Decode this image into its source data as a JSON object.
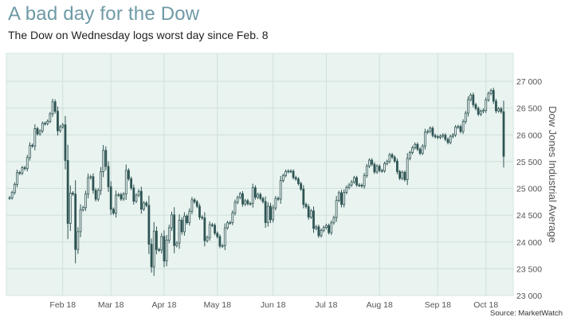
{
  "header": {
    "title": "A bad day for the Dow",
    "subtitle": "The Dow on Wednesday logs worst day since Feb. 8"
  },
  "footer": {
    "source": "Source: MarketWatch"
  },
  "colors": {
    "plot_background": "#e9f3ef",
    "grid": "#cfe0da",
    "candle": "#2e5554",
    "title": "#6e9aa6",
    "axis_text": "#555555"
  },
  "chart_data": {
    "type": "candlestick",
    "title": "A bad day for the Dow",
    "subtitle": "The Dow on Wednesday logs worst day since Feb. 8",
    "ylabel": "Dow Jones Industrial Average",
    "xlabel": "",
    "y_axis_side": "right",
    "ylim": [
      23000,
      27000
    ],
    "y_ticks": [
      23000,
      23500,
      24000,
      24500,
      25000,
      25500,
      26000,
      26500,
      27000
    ],
    "y_tick_labels": [
      "23 000",
      "23 500",
      "24 000",
      "24 500",
      "25 000",
      "25 500",
      "26 000",
      "26 500",
      "27 000"
    ],
    "x_ticks": [
      "Feb 18",
      "Mar 18",
      "Apr 18",
      "May 18",
      "Jun 18",
      "Jul 18",
      "Aug 18",
      "Sep 18",
      "Oct 18"
    ],
    "grid": true,
    "series": [
      {
        "interval": "daily",
        "values": [
          {
            "d": "Jan 02",
            "c": 24824
          },
          {
            "d": "Jan 03",
            "c": 24922
          },
          {
            "d": "Jan 04",
            "c": 25075
          },
          {
            "d": "Jan 05",
            "c": 25295
          },
          {
            "d": "Jan 08",
            "c": 25283
          },
          {
            "d": "Jan 09",
            "c": 25386
          },
          {
            "d": "Jan 10",
            "c": 25369
          },
          {
            "d": "Jan 11",
            "c": 25574
          },
          {
            "d": "Jan 12",
            "c": 25803
          },
          {
            "d": "Jan 16",
            "c": 25792
          },
          {
            "d": "Jan 17",
            "c": 26116
          },
          {
            "d": "Jan 18",
            "c": 26017
          },
          {
            "d": "Jan 19",
            "c": 26071
          },
          {
            "d": "Jan 22",
            "c": 26214
          },
          {
            "d": "Jan 23",
            "c": 26210
          },
          {
            "d": "Jan 24",
            "c": 26252
          },
          {
            "d": "Jan 25",
            "c": 26392
          },
          {
            "d": "Jan 26",
            "c": 26616
          },
          {
            "d": "Jan 29",
            "c": 26439
          },
          {
            "d": "Jan 30",
            "c": 26076
          },
          {
            "d": "Jan 31",
            "c": 26149
          },
          {
            "d": "Feb 01",
            "c": 26186
          },
          {
            "d": "Feb 02",
            "c": 25521
          },
          {
            "d": "Feb 05",
            "c": 24346
          },
          {
            "d": "Feb 06",
            "c": 24913
          },
          {
            "d": "Feb 07",
            "c": 24893
          },
          {
            "d": "Feb 08",
            "c": 23860
          },
          {
            "d": "Feb 09",
            "c": 24191
          },
          {
            "d": "Feb 12",
            "c": 24601
          },
          {
            "d": "Feb 13",
            "c": 24640
          },
          {
            "d": "Feb 14",
            "c": 24893
          },
          {
            "d": "Feb 15",
            "c": 25200
          },
          {
            "d": "Feb 16",
            "c": 25219
          },
          {
            "d": "Feb 20",
            "c": 24964
          },
          {
            "d": "Feb 21",
            "c": 24798
          },
          {
            "d": "Feb 22",
            "c": 24963
          },
          {
            "d": "Feb 23",
            "c": 25310
          },
          {
            "d": "Feb 26",
            "c": 25709
          },
          {
            "d": "Feb 27",
            "c": 25410
          },
          {
            "d": "Feb 28",
            "c": 25029
          },
          {
            "d": "Mar 01",
            "c": 24609
          },
          {
            "d": "Mar 02",
            "c": 24538
          },
          {
            "d": "Mar 05",
            "c": 24874
          },
          {
            "d": "Mar 06",
            "c": 24884
          },
          {
            "d": "Mar 07",
            "c": 24802
          },
          {
            "d": "Mar 08",
            "c": 24895
          },
          {
            "d": "Mar 09",
            "c": 25336
          },
          {
            "d": "Mar 12",
            "c": 25179
          },
          {
            "d": "Mar 13",
            "c": 25008
          },
          {
            "d": "Mar 14",
            "c": 24759
          },
          {
            "d": "Mar 15",
            "c": 24874
          },
          {
            "d": "Mar 16",
            "c": 24947
          },
          {
            "d": "Mar 19",
            "c": 24611
          },
          {
            "d": "Mar 20",
            "c": 24728
          },
          {
            "d": "Mar 21",
            "c": 24683
          },
          {
            "d": "Mar 22",
            "c": 23958
          },
          {
            "d": "Mar 23",
            "c": 23533
          },
          {
            "d": "Mar 26",
            "c": 24202
          },
          {
            "d": "Mar 27",
            "c": 23857
          },
          {
            "d": "Mar 28",
            "c": 23849
          },
          {
            "d": "Mar 29",
            "c": 24103
          },
          {
            "d": "Apr 02",
            "c": 23644
          },
          {
            "d": "Apr 03",
            "c": 24033
          },
          {
            "d": "Apr 04",
            "c": 24265
          },
          {
            "d": "Apr 05",
            "c": 24505
          },
          {
            "d": "Apr 06",
            "c": 23933
          },
          {
            "d": "Apr 09",
            "c": 23979
          },
          {
            "d": "Apr 10",
            "c": 24408
          },
          {
            "d": "Apr 11",
            "c": 24190
          },
          {
            "d": "Apr 12",
            "c": 24483
          },
          {
            "d": "Apr 13",
            "c": 24360
          },
          {
            "d": "Apr 16",
            "c": 24573
          },
          {
            "d": "Apr 17",
            "c": 24786
          },
          {
            "d": "Apr 18",
            "c": 24748
          },
          {
            "d": "Apr 19",
            "c": 24665
          },
          {
            "d": "Apr 20",
            "c": 24463
          },
          {
            "d": "Apr 23",
            "c": 24448
          },
          {
            "d": "Apr 24",
            "c": 24024
          },
          {
            "d": "Apr 25",
            "c": 24084
          },
          {
            "d": "Apr 26",
            "c": 24322
          },
          {
            "d": "Apr 27",
            "c": 24311
          },
          {
            "d": "Apr 30",
            "c": 24163
          },
          {
            "d": "May 01",
            "c": 24100
          },
          {
            "d": "May 02",
            "c": 23925
          },
          {
            "d": "May 03",
            "c": 23930
          },
          {
            "d": "May 04",
            "c": 24263
          },
          {
            "d": "May 07",
            "c": 24358
          },
          {
            "d": "May 08",
            "c": 24361
          },
          {
            "d": "May 09",
            "c": 24543
          },
          {
            "d": "May 10",
            "c": 24740
          },
          {
            "d": "May 11",
            "c": 24831
          },
          {
            "d": "May 14",
            "c": 24900
          },
          {
            "d": "May 15",
            "c": 24706
          },
          {
            "d": "May 16",
            "c": 24769
          },
          {
            "d": "May 17",
            "c": 24714
          },
          {
            "d": "May 18",
            "c": 24715
          },
          {
            "d": "May 21",
            "c": 25013
          },
          {
            "d": "May 22",
            "c": 24834
          },
          {
            "d": "May 23",
            "c": 24887
          },
          {
            "d": "May 24",
            "c": 24811
          },
          {
            "d": "May 25",
            "c": 24753
          },
          {
            "d": "May 29",
            "c": 24362
          },
          {
            "d": "May 30",
            "c": 24667
          },
          {
            "d": "May 31",
            "c": 24416
          },
          {
            "d": "Jun 01",
            "c": 24635
          },
          {
            "d": "Jun 04",
            "c": 24813
          },
          {
            "d": "Jun 05",
            "c": 24799
          },
          {
            "d": "Jun 06",
            "c": 25146
          },
          {
            "d": "Jun 07",
            "c": 25241
          },
          {
            "d": "Jun 08",
            "c": 25317
          },
          {
            "d": "Jun 11",
            "c": 25322
          },
          {
            "d": "Jun 12",
            "c": 25320
          },
          {
            "d": "Jun 13",
            "c": 25201
          },
          {
            "d": "Jun 14",
            "c": 25175
          },
          {
            "d": "Jun 15",
            "c": 25090
          },
          {
            "d": "Jun 18",
            "c": 24987
          },
          {
            "d": "Jun 19",
            "c": 24700
          },
          {
            "d": "Jun 20",
            "c": 24657
          },
          {
            "d": "Jun 21",
            "c": 24462
          },
          {
            "d": "Jun 22",
            "c": 24580
          },
          {
            "d": "Jun 25",
            "c": 24252
          },
          {
            "d": "Jun 26",
            "c": 24283
          },
          {
            "d": "Jun 27",
            "c": 24117
          },
          {
            "d": "Jun 28",
            "c": 24216
          },
          {
            "d": "Jun 29",
            "c": 24271
          },
          {
            "d": "Jul 02",
            "c": 24307
          },
          {
            "d": "Jul 03",
            "c": 24174
          },
          {
            "d": "Jul 05",
            "c": 24357
          },
          {
            "d": "Jul 06",
            "c": 24456
          },
          {
            "d": "Jul 09",
            "c": 24776
          },
          {
            "d": "Jul 10",
            "c": 24919
          },
          {
            "d": "Jul 11",
            "c": 24700
          },
          {
            "d": "Jul 12",
            "c": 24925
          },
          {
            "d": "Jul 13",
            "c": 25019
          },
          {
            "d": "Jul 16",
            "c": 25064
          },
          {
            "d": "Jul 17",
            "c": 25120
          },
          {
            "d": "Jul 18",
            "c": 25199
          },
          {
            "d": "Jul 19",
            "c": 25064
          },
          {
            "d": "Jul 20",
            "c": 25058
          },
          {
            "d": "Jul 23",
            "c": 25044
          },
          {
            "d": "Jul 24",
            "c": 25241
          },
          {
            "d": "Jul 25",
            "c": 25414
          },
          {
            "d": "Jul 26",
            "c": 25527
          },
          {
            "d": "Jul 27",
            "c": 25451
          },
          {
            "d": "Jul 30",
            "c": 25306
          },
          {
            "d": "Jul 31",
            "c": 25415
          },
          {
            "d": "Aug 01",
            "c": 25333
          },
          {
            "d": "Aug 02",
            "c": 25327
          },
          {
            "d": "Aug 03",
            "c": 25463
          },
          {
            "d": "Aug 06",
            "c": 25502
          },
          {
            "d": "Aug 07",
            "c": 25628
          },
          {
            "d": "Aug 08",
            "c": 25583
          },
          {
            "d": "Aug 09",
            "c": 25509
          },
          {
            "d": "Aug 10",
            "c": 25313
          },
          {
            "d": "Aug 13",
            "c": 25188
          },
          {
            "d": "Aug 14",
            "c": 25300
          },
          {
            "d": "Aug 15",
            "c": 25162
          },
          {
            "d": "Aug 16",
            "c": 25559
          },
          {
            "d": "Aug 17",
            "c": 25669
          },
          {
            "d": "Aug 20",
            "c": 25759
          },
          {
            "d": "Aug 21",
            "c": 25822
          },
          {
            "d": "Aug 22",
            "c": 25733
          },
          {
            "d": "Aug 23",
            "c": 25656
          },
          {
            "d": "Aug 24",
            "c": 25790
          },
          {
            "d": "Aug 27",
            "c": 26049
          },
          {
            "d": "Aug 28",
            "c": 26064
          },
          {
            "d": "Aug 29",
            "c": 26124
          },
          {
            "d": "Aug 30",
            "c": 25986
          },
          {
            "d": "Aug 31",
            "c": 25964
          },
          {
            "d": "Sep 04",
            "c": 25952
          },
          {
            "d": "Sep 05",
            "c": 25974
          },
          {
            "d": "Sep 06",
            "c": 25995
          },
          {
            "d": "Sep 07",
            "c": 25916
          },
          {
            "d": "Sep 10",
            "c": 25857
          },
          {
            "d": "Sep 11",
            "c": 25971
          },
          {
            "d": "Sep 12",
            "c": 25998
          },
          {
            "d": "Sep 13",
            "c": 26145
          },
          {
            "d": "Sep 14",
            "c": 26154
          },
          {
            "d": "Sep 17",
            "c": 26062
          },
          {
            "d": "Sep 18",
            "c": 26246
          },
          {
            "d": "Sep 19",
            "c": 26405
          },
          {
            "d": "Sep 20",
            "c": 26657
          },
          {
            "d": "Sep 21",
            "c": 26743
          },
          {
            "d": "Sep 24",
            "c": 26562
          },
          {
            "d": "Sep 25",
            "c": 26492
          },
          {
            "d": "Sep 26",
            "c": 26385
          },
          {
            "d": "Sep 27",
            "c": 26439
          },
          {
            "d": "Sep 28",
            "c": 26458
          },
          {
            "d": "Oct 01",
            "c": 26651
          },
          {
            "d": "Oct 02",
            "c": 26774
          },
          {
            "d": "Oct 03",
            "c": 26828
          },
          {
            "d": "Oct 04",
            "c": 26628
          },
          {
            "d": "Oct 05",
            "c": 26447
          },
          {
            "d": "Oct 08",
            "c": 26486
          },
          {
            "d": "Oct 09",
            "c": 26430
          },
          {
            "d": "Oct 10",
            "c": 25599
          }
        ]
      }
    ]
  }
}
